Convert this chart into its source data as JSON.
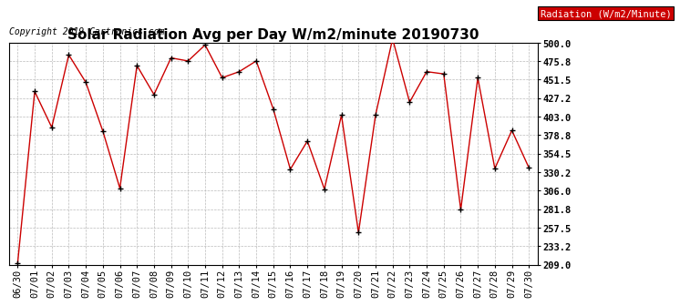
{
  "title": "Solar Radiation Avg per Day W/m2/minute 20190730",
  "copyright": "Copyright 2019 Cartronics.com",
  "legend_label": "Radiation (W/m2/Minute)",
  "x_labels": [
    "06/30",
    "07/01",
    "07/02",
    "07/03",
    "07/04",
    "07/05",
    "07/06",
    "07/07",
    "07/08",
    "07/09",
    "07/10",
    "07/11",
    "07/12",
    "07/13",
    "07/14",
    "07/15",
    "07/16",
    "07/17",
    "07/18",
    "07/19",
    "07/20",
    "07/21",
    "07/22",
    "07/23",
    "07/24",
    "07/25",
    "07/26",
    "07/27",
    "07/28",
    "07/29",
    "07/30"
  ],
  "y_values": [
    211.0,
    436.0,
    389.0,
    484.0,
    448.0,
    384.0,
    309.0,
    470.0,
    432.0,
    480.0,
    476.0,
    497.0,
    454.0,
    462.0,
    476.0,
    413.0,
    334.0,
    371.0,
    308.0,
    405.0,
    251.0,
    405.0,
    505.0,
    422.0,
    462.0,
    459.0,
    281.0,
    454.0,
    335.0,
    385.0,
    336.0
  ],
  "ylim": [
    209.0,
    500.0
  ],
  "ytick_values": [
    209.0,
    233.2,
    257.5,
    281.8,
    306.0,
    330.2,
    354.5,
    378.8,
    403.0,
    427.2,
    451.5,
    475.8,
    500.0
  ],
  "ytick_labels": [
    "209.0",
    "233.2",
    "257.5",
    "281.8",
    "306.0",
    "330.2",
    "354.5",
    "378.8",
    "403.0",
    "427.2",
    "451.5",
    "475.8",
    "500.0"
  ],
  "line_color": "#cc0000",
  "marker_color": "#000000",
  "background_color": "#ffffff",
  "grid_color": "#bbbbbb",
  "legend_bg": "#cc0000",
  "legend_text_color": "#ffffff",
  "title_fontsize": 11,
  "copyright_fontsize": 7,
  "tick_fontsize": 7.5,
  "legend_fontsize": 7.5
}
